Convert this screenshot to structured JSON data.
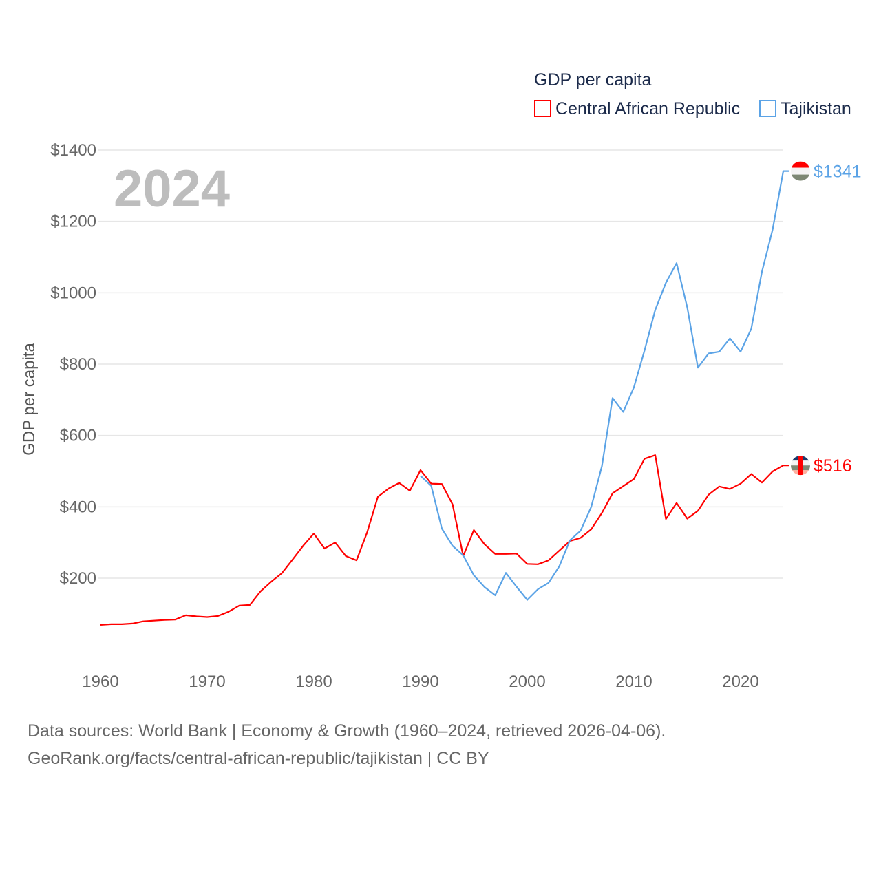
{
  "chart_data": {
    "type": "line",
    "title": "GDP per capita",
    "year_label": "2024",
    "ylabel": "GDP per capita",
    "xlabel": "",
    "xlim": [
      1960,
      2024
    ],
    "ylim": [
      0,
      1400
    ],
    "yticks": [
      200,
      400,
      600,
      800,
      1000,
      1200,
      1400
    ],
    "ytick_labels": [
      "$200",
      "$400",
      "$600",
      "$800",
      "$1000",
      "$1200",
      "$1400"
    ],
    "xticks": [
      1960,
      1970,
      1980,
      1990,
      2000,
      2010,
      2020
    ],
    "xtick_labels": [
      "1960",
      "1970",
      "1980",
      "1990",
      "2000",
      "2010",
      "2020"
    ],
    "grid": true,
    "legend_position": "top-right",
    "series": [
      {
        "name": "Central African Republic",
        "color": "#ff0000",
        "end_label": "$516",
        "start_year": 1960,
        "values": [
          69,
          71,
          71,
          73,
          79,
          81,
          83,
          84,
          96,
          93,
          91,
          94,
          106,
          123,
          125,
          163,
          190,
          214,
          252,
          291,
          325,
          283,
          300,
          262,
          250,
          329,
          428,
          451,
          467,
          445,
          503,
          465,
          464,
          407,
          262,
          335,
          295,
          268,
          268,
          269,
          240,
          239,
          250,
          277,
          304,
          313,
          337,
          383,
          438,
          458,
          478,
          535,
          545,
          366,
          411,
          367,
          389,
          434,
          457,
          450,
          465,
          492,
          468,
          499,
          516
        ]
      },
      {
        "name": "Tajikistan",
        "color": "#5ba3e6",
        "end_label": "$1341",
        "start_year": 1990,
        "values": [
          487,
          459,
          339,
          291,
          264,
          208,
          175,
          152,
          215,
          176,
          139,
          169,
          187,
          233,
          306,
          333,
          400,
          514,
          705,
          666,
          735,
          839,
          952,
          1028,
          1083,
          959,
          790,
          830,
          835,
          872,
          835,
          899,
          1059,
          1177,
          1341
        ]
      }
    ]
  },
  "footer": {
    "line1": "Data sources: World Bank | Economy & Growth (1960–2024, retrieved 2026-04-06).",
    "line2": "GeoRank.org/facts/central-african-republic/tajikistan | CC BY"
  }
}
